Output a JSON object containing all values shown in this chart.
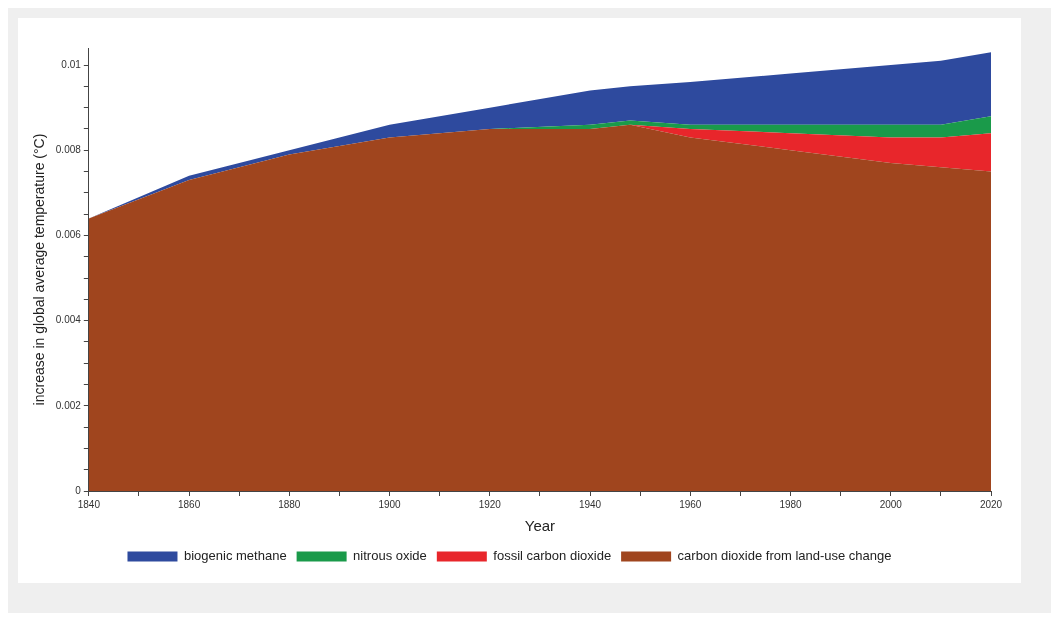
{
  "chart_data": {
    "type": "area",
    "stacked": true,
    "xlabel": "Year",
    "ylabel": "increase in global average temperature (°C)",
    "x": [
      1840,
      1860,
      1880,
      1900,
      1920,
      1940,
      1948,
      1960,
      1980,
      2000,
      2010,
      2020
    ],
    "series": [
      {
        "name": "carbon dioxide from land-use change",
        "color": "#a0451e",
        "values": [
          0.0064,
          0.0073,
          0.0079,
          0.0083,
          0.0085,
          0.0085,
          0.0086,
          0.0083,
          0.008,
          0.0077,
          0.0076,
          0.0075
        ]
      },
      {
        "name": "fossil carbon dioxide",
        "color": "#e8262b",
        "values": [
          0,
          0,
          0,
          0,
          0,
          0,
          0,
          0.0002,
          0.0004,
          0.0006,
          0.0007,
          0.0009
        ]
      },
      {
        "name": "nitrous oxide",
        "color": "#1a9a4a",
        "values": [
          0,
          0,
          0,
          0,
          0,
          0.0001,
          0.0001,
          0.0001,
          0.0002,
          0.0003,
          0.0003,
          0.0004
        ]
      },
      {
        "name": "biogenic methane",
        "color": "#2e4a9e",
        "values": [
          0,
          0.0001,
          0.0001,
          0.0003,
          0.0005,
          0.0008,
          0.0008,
          0.001,
          0.0012,
          0.0014,
          0.0015,
          0.0015
        ]
      }
    ],
    "xlim": [
      1840,
      2020
    ],
    "xticks": [
      1840,
      {
        "value": 1850,
        "label": null
      },
      1860,
      {
        "value": 1870,
        "label": null
      },
      1880,
      {
        "value": 1890,
        "label": null
      },
      1900,
      {
        "value": 1910,
        "label": null
      },
      1920,
      {
        "value": 1930,
        "label": null
      },
      1940,
      {
        "value": 1950,
        "label": null
      },
      1960,
      {
        "value": 1970,
        "label": null
      },
      1980,
      {
        "value": 1990,
        "label": null
      },
      2000,
      {
        "value": 2010,
        "label": null
      },
      2020
    ],
    "ylim": [
      0,
      0.0104
    ],
    "yticks": [
      0,
      {
        "value": 0.0005,
        "label": null
      },
      {
        "value": 0.001,
        "label": null
      },
      {
        "value": 0.0015,
        "label": null
      },
      0.002,
      {
        "value": 0.0025,
        "label": null
      },
      {
        "value": 0.003,
        "label": null
      },
      {
        "value": 0.0035,
        "label": null
      },
      0.004,
      {
        "value": 0.0045,
        "label": null
      },
      {
        "value": 0.005,
        "label": null
      },
      {
        "value": 0.0055,
        "label": null
      },
      0.006,
      {
        "value": 0.0065,
        "label": null
      },
      {
        "value": 0.007,
        "label": null
      },
      {
        "value": 0.0075,
        "label": null
      },
      0.008,
      {
        "value": 0.0085,
        "label": null
      },
      {
        "value": 0.009,
        "label": null
      },
      {
        "value": 0.0095,
        "label": null
      },
      0.01
    ],
    "grid": false,
    "legend": "bottom"
  }
}
